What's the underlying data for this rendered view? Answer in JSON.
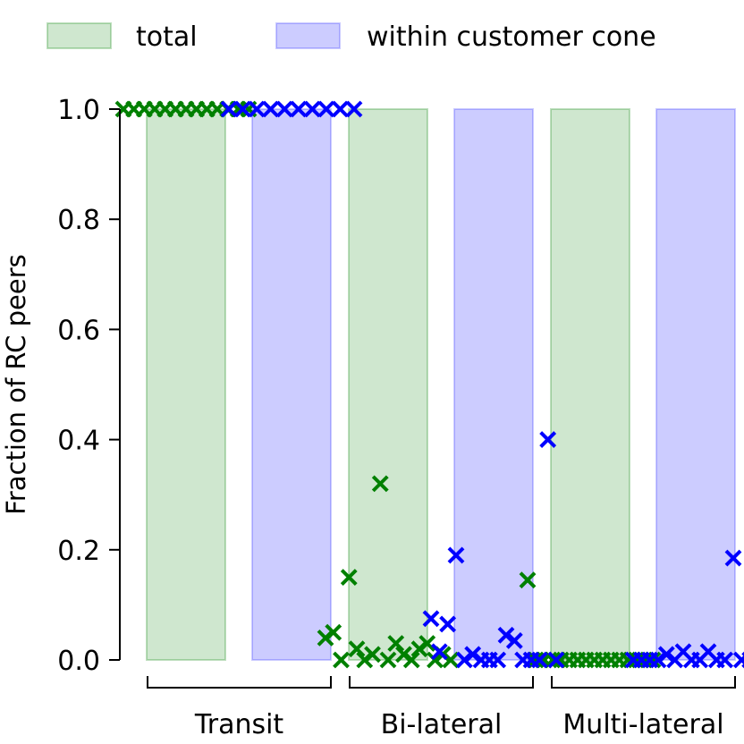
{
  "chart_data": {
    "type": "bar",
    "ylabel": "Fraction of RC peers",
    "ylim": [
      0,
      1
    ],
    "yticks": [
      "0.0",
      "0.2",
      "0.4",
      "0.6",
      "0.8",
      "1.0"
    ],
    "legend_position": "top",
    "groups": [
      "Transit",
      "Bi-lateral",
      "Multi-lateral"
    ],
    "series": [
      {
        "name": "total",
        "color": "#008000",
        "values": [
          1.0,
          1.0,
          1.0
        ],
        "points": [
          [
            1.0,
            1.0,
            1.0,
            1.0,
            1.0,
            1.0,
            1.0,
            1.0,
            1.0,
            1.0,
            1.0,
            1.0,
            1.0
          ],
          [
            0.04,
            0.05,
            0.0,
            0.15,
            0.02,
            0.0,
            0.01,
            0.32,
            0.0,
            0.03,
            0.01,
            0.0,
            0.02,
            0.03,
            0.0,
            0.01,
            0.0
          ],
          [
            0.145,
            0.0,
            0.0,
            0.0,
            0.0,
            0.0,
            0.0,
            0.0,
            0.0,
            0.0,
            0.0,
            0.0,
            0.0,
            0.0,
            0.0,
            0.0
          ]
        ]
      },
      {
        "name": "within customer cone",
        "color": "#0000ff",
        "values": [
          1.0,
          1.0,
          1.0
        ],
        "points": [
          [
            1.0,
            1.0,
            1.0,
            1.0,
            1.0,
            1.0,
            1.0,
            1.0,
            1.0,
            1.0
          ],
          [
            0.075,
            0.015,
            0.065,
            0.19,
            0.0,
            0.01,
            0.0,
            0.0,
            0.0,
            0.045,
            0.035,
            0.0,
            0.0,
            0.0,
            0.4,
            0.0
          ],
          [
            0.0,
            0.0,
            0.0,
            0.0,
            0.01,
            0.0,
            0.015,
            0.0,
            0.0,
            0.015,
            0.0,
            0.0,
            0.185,
            0.0,
            0.0,
            0.0
          ]
        ]
      }
    ]
  }
}
